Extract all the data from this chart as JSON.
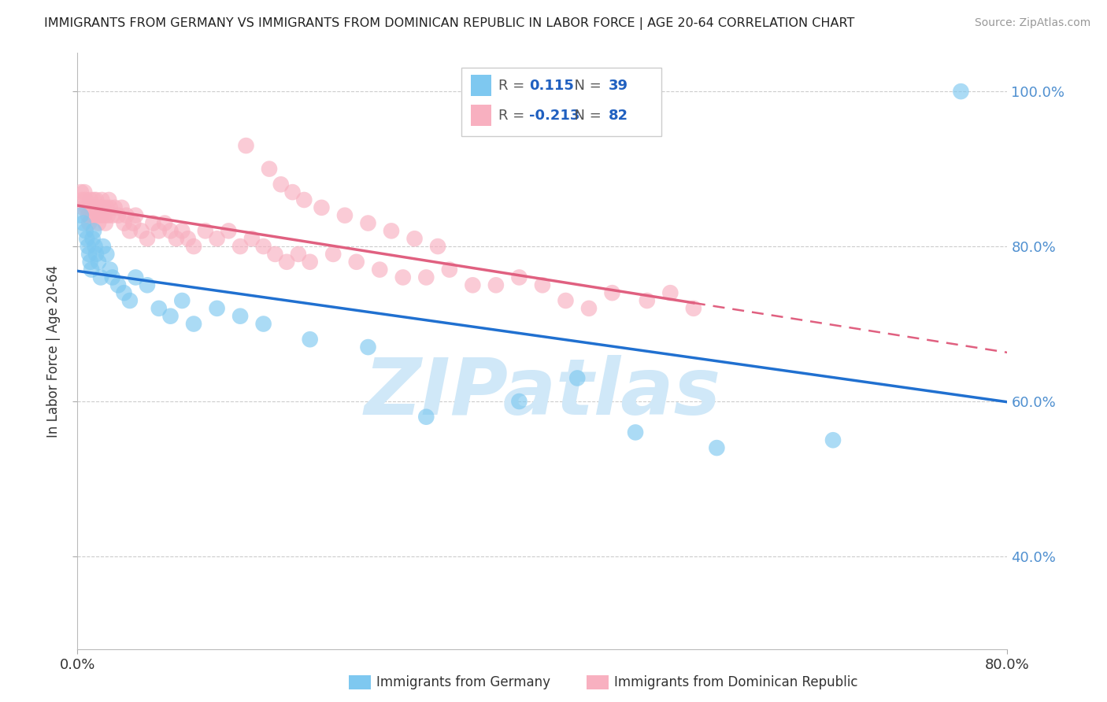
{
  "title": "IMMIGRANTS FROM GERMANY VS IMMIGRANTS FROM DOMINICAN REPUBLIC IN LABOR FORCE | AGE 20-64 CORRELATION CHART",
  "source": "Source: ZipAtlas.com",
  "xlabel_germany": "Immigrants from Germany",
  "xlabel_dr": "Immigrants from Dominican Republic",
  "ylabel": "In Labor Force | Age 20-64",
  "xlim": [
    0.0,
    0.8
  ],
  "ylim": [
    0.28,
    1.05
  ],
  "yticks": [
    0.4,
    0.6,
    0.8,
    1.0
  ],
  "ytick_labels": [
    "40.0%",
    "60.0%",
    "80.0%",
    "100.0%"
  ],
  "xticks": [
    0.0,
    0.8
  ],
  "xtick_labels": [
    "0.0%",
    "80.0%"
  ],
  "R_germany": 0.115,
  "N_germany": 39,
  "R_dr": -0.213,
  "N_dr": 82,
  "color_germany": "#7ec8f0",
  "color_dr": "#f8b0c0",
  "line_color_germany": "#2070d0",
  "line_color_dr": "#e06080",
  "watermark": "ZIPatlas",
  "watermark_color": "#d0e8f8",
  "legend_R_color": "#2060c0",
  "legend_text_color": "#555555",
  "right_axis_color": "#5090d0",
  "germany_x": [
    0.003,
    0.005,
    0.007,
    0.008,
    0.009,
    0.01,
    0.011,
    0.012,
    0.013,
    0.014,
    0.015,
    0.016,
    0.018,
    0.02,
    0.022,
    0.025,
    0.028,
    0.03,
    0.035,
    0.04,
    0.045,
    0.05,
    0.06,
    0.07,
    0.08,
    0.09,
    0.1,
    0.12,
    0.14,
    0.16,
    0.2,
    0.25,
    0.3,
    0.38,
    0.43,
    0.48,
    0.55,
    0.65,
    0.76
  ],
  "germany_y": [
    0.84,
    0.83,
    0.82,
    0.81,
    0.8,
    0.79,
    0.78,
    0.77,
    0.81,
    0.82,
    0.8,
    0.79,
    0.78,
    0.76,
    0.8,
    0.79,
    0.77,
    0.76,
    0.75,
    0.74,
    0.73,
    0.76,
    0.75,
    0.72,
    0.71,
    0.73,
    0.7,
    0.72,
    0.71,
    0.7,
    0.68,
    0.67,
    0.58,
    0.6,
    0.63,
    0.56,
    0.54,
    0.55,
    1.0
  ],
  "dr_x": [
    0.003,
    0.004,
    0.005,
    0.006,
    0.007,
    0.008,
    0.009,
    0.01,
    0.011,
    0.012,
    0.013,
    0.014,
    0.015,
    0.016,
    0.017,
    0.018,
    0.019,
    0.02,
    0.021,
    0.022,
    0.023,
    0.024,
    0.025,
    0.026,
    0.027,
    0.028,
    0.03,
    0.032,
    0.035,
    0.038,
    0.04,
    0.042,
    0.045,
    0.048,
    0.05,
    0.055,
    0.06,
    0.065,
    0.07,
    0.075,
    0.08,
    0.085,
    0.09,
    0.095,
    0.1,
    0.11,
    0.12,
    0.13,
    0.14,
    0.15,
    0.16,
    0.17,
    0.18,
    0.19,
    0.2,
    0.22,
    0.24,
    0.26,
    0.28,
    0.3,
    0.32,
    0.34,
    0.36,
    0.38,
    0.4,
    0.42,
    0.44,
    0.46,
    0.49,
    0.51,
    0.53,
    0.145,
    0.165,
    0.175,
    0.185,
    0.195,
    0.21,
    0.23,
    0.25,
    0.27,
    0.29,
    0.31
  ],
  "dr_y": [
    0.87,
    0.86,
    0.85,
    0.87,
    0.86,
    0.85,
    0.84,
    0.83,
    0.86,
    0.85,
    0.84,
    0.86,
    0.85,
    0.86,
    0.84,
    0.83,
    0.85,
    0.84,
    0.86,
    0.85,
    0.84,
    0.83,
    0.85,
    0.84,
    0.86,
    0.85,
    0.84,
    0.85,
    0.84,
    0.85,
    0.83,
    0.84,
    0.82,
    0.83,
    0.84,
    0.82,
    0.81,
    0.83,
    0.82,
    0.83,
    0.82,
    0.81,
    0.82,
    0.81,
    0.8,
    0.82,
    0.81,
    0.82,
    0.8,
    0.81,
    0.8,
    0.79,
    0.78,
    0.79,
    0.78,
    0.79,
    0.78,
    0.77,
    0.76,
    0.76,
    0.77,
    0.75,
    0.75,
    0.76,
    0.75,
    0.73,
    0.72,
    0.74,
    0.73,
    0.74,
    0.72,
    0.93,
    0.9,
    0.88,
    0.87,
    0.86,
    0.85,
    0.84,
    0.83,
    0.82,
    0.81,
    0.8
  ]
}
